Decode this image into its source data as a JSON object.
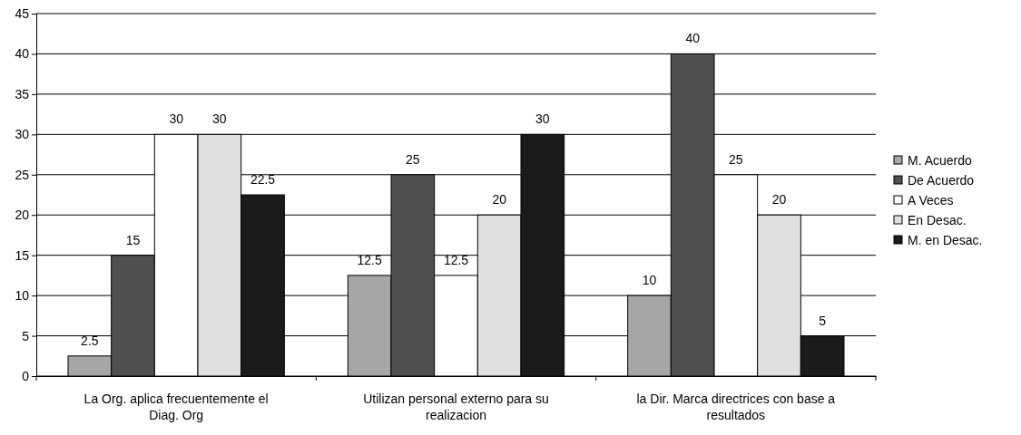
{
  "chart_data": {
    "type": "bar",
    "categories": [
      "La Org. aplica frecuentemente el Diag. Org",
      "Utilizan personal externo para su realizacion",
      "la Dir. Marca directrices con base a resultados"
    ],
    "series": [
      {
        "name": "M. Acuerdo",
        "color": "#a6a6a6",
        "values": [
          2.5,
          12.5,
          10
        ]
      },
      {
        "name": "De Acuerdo",
        "color": "#505050",
        "values": [
          15,
          25,
          40
        ]
      },
      {
        "name": "A Veces",
        "color": "#ffffff",
        "values": [
          30,
          12.5,
          25
        ]
      },
      {
        "name": "En Desac.",
        "color": "#e0e0e0",
        "values": [
          30,
          20,
          20
        ]
      },
      {
        "name": "M. en Desac.",
        "color": "#1a1a1a",
        "values": [
          22.5,
          30,
          5
        ]
      }
    ],
    "ylim": [
      0,
      45
    ],
    "yticks": [
      0,
      5,
      10,
      15,
      20,
      25,
      30,
      35,
      40,
      45
    ],
    "grid": "y",
    "legend": "right",
    "data_labels": true
  }
}
